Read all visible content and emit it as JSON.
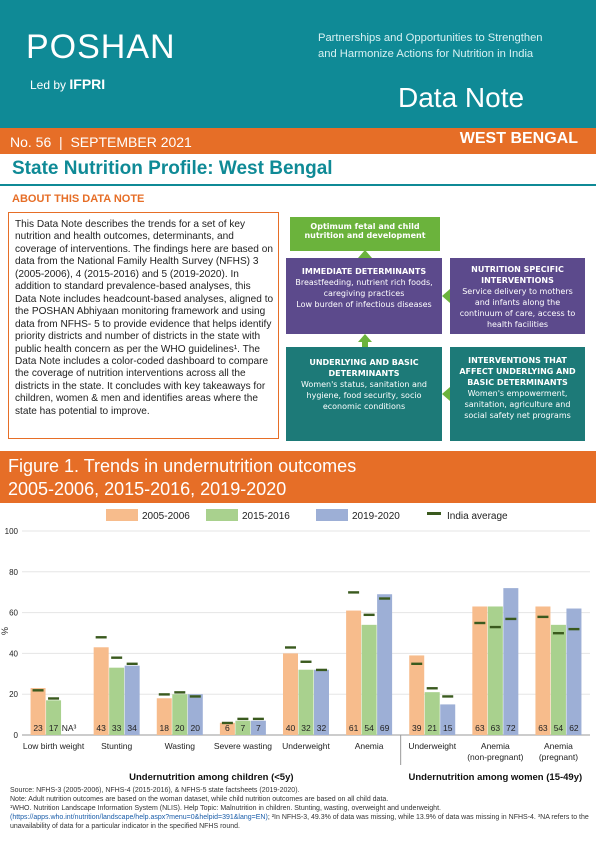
{
  "header": {
    "logo_text": "POSHAN",
    "led_by_prefix": "Led by",
    "led_by_org": "IFPRI",
    "tagline_line1": "Partnerships and Opportunities to Strengthen",
    "tagline_line2": "and Harmonize Actions for Nutrition in India",
    "series_title": "Data Note"
  },
  "issue": {
    "number": "No. 56",
    "separator": "|",
    "date": "SEPTEMBER 2021",
    "state": "WEST BENGAL"
  },
  "title": "State Nutrition Profile: West Bengal",
  "about": {
    "heading": "ABOUT THIS DATA NOTE",
    "body": "This Data Note describes the trends for a set of key nutrition and health outcomes, determinants, and coverage of interventions. The findings here are based on data from the National Family Health Survey (NFHS) 3 (2005-2006), 4 (2015-2016) and 5 (2019-2020). In addition to standard prevalence-based analyses, this Data Note includes headcount-based analyses, aligned to the POSHAN Abhiyaan monitoring framework and using data from NFHS- 5 to provide evidence that helps identify priority districts and number of districts in the state with public health concern as per the WHO guidelines¹. The Data Note includes a color-coded dashboard to compare the coverage of nutrition interventions across all the districts in the state. It concludes with key takeaways for children, women & men and identifies areas where the state has potential to improve."
  },
  "framework": {
    "outcome": "Optimum fetal and child nutrition and development",
    "immediate_title": "IMMEDIATE DETERMINANTS",
    "immediate_body": "Breastfeeding, nutrient rich foods, caregiving practices\nLow burden of infectious diseases",
    "specific_title": "NUTRITION SPECIFIC INTERVENTIONS",
    "specific_body": "Service delivery to mothers and infants along the continuum of care, access to health facilities",
    "underlying_title": "UNDERLYING AND BASIC DETERMINANTS",
    "underlying_body": "Women's status, sanitation and hygiene, food security, socio economic conditions",
    "sensitive_title": "INTERVENTIONS THAT AFFECT UNDERLYING AND BASIC DETERMINANTS",
    "sensitive_body": "Women's empowerment, sanitation, agriculture and social safety net programs",
    "colors": {
      "green": "#6bb33c",
      "purple": "#5c4a8c",
      "teal": "#1d7a78"
    }
  },
  "figure": {
    "title_line1": "Figure 1. Trends in undernutrition outcomes",
    "title_line2": "2005-2006, 2015-2016, 2019-2020"
  },
  "chart_data": {
    "type": "bar",
    "ylabel": "%",
    "ylim": [
      0,
      100
    ],
    "yticks": [
      0,
      20,
      40,
      60,
      80,
      100
    ],
    "categories": [
      "Low birth weight",
      "Stunting",
      "Wasting",
      "Severe wasting",
      "Underweight",
      "Anemia",
      "Underweight",
      "Anemia (non-pregnant)",
      "Anemia (pregnant)"
    ],
    "category_lines": [
      [
        "Low birth weight"
      ],
      [
        "Stunting"
      ],
      [
        "Wasting"
      ],
      [
        "Severe wasting"
      ],
      [
        "Underweight"
      ],
      [
        "Anemia"
      ],
      [
        "Underweight"
      ],
      [
        "Anemia",
        "(non-pregnant)"
      ],
      [
        "Anemia",
        "(pregnant)"
      ]
    ],
    "series": [
      {
        "name": "2005-2006",
        "color": "#f7bc8c",
        "values": [
          23,
          43,
          18,
          6,
          40,
          61,
          39,
          63,
          63
        ],
        "labels": [
          "23",
          "43",
          "18",
          "6",
          "40",
          "61",
          "39",
          "63",
          "63"
        ]
      },
      {
        "name": "2015-2016",
        "color": "#a9d18e",
        "values": [
          17,
          33,
          20,
          7,
          32,
          54,
          21,
          63,
          54
        ],
        "labels": [
          "17",
          "33",
          "20",
          "7",
          "32",
          "54",
          "21",
          "63",
          "54"
        ]
      },
      {
        "name": "2019-2020",
        "color": "#9dafd6",
        "values": [
          null,
          34,
          20,
          7,
          32,
          69,
          15,
          72,
          62
        ],
        "labels": [
          "NA³",
          "34",
          "20",
          "7",
          "32",
          "69",
          "15",
          "72",
          "62"
        ]
      }
    ],
    "india_average": {
      "name": "India average",
      "color": "#3a5a1e",
      "values": [
        [
          22,
          18,
          null
        ],
        [
          48,
          38,
          35
        ],
        [
          20,
          21,
          19
        ],
        [
          6,
          8,
          8
        ],
        [
          43,
          36,
          32
        ],
        [
          70,
          59,
          67
        ],
        [
          35,
          23,
          19
        ],
        [
          55,
          53,
          57
        ],
        [
          58,
          50,
          52
        ]
      ]
    },
    "groups": [
      {
        "label": "Undernutrition among children (<5y)",
        "from": 0,
        "to": 5
      },
      {
        "label": "Undernutrition among women (15-49y)",
        "from": 6,
        "to": 8
      }
    ]
  },
  "footnote": {
    "line1": "Source: NFHS-3 (2005-2006), NFHS-4 (2015-2016), & NFHS-5 state factsheets (2019-2020).",
    "line2": "Note: Adult nutrition outcomes are based on the woman dataset, while child nutrition outcomes are based on all child data.",
    "line3": "¹WHO. Nutrition Landscape Information System (NLIS). Help Topic: Malnutrition in children. Stunting, wasting, overweight and underweight.",
    "link": "(https://apps.who.int/nutrition/landscape/help.aspx?menu=0&helpid=391&lang=EN)",
    "line4": "; ²In NFHS-3, 49.3% of data was missing, while 13.9% of data was missing in NFHS-4. ³NA refers to the unavailability of data for a particular indicator in the specified NFHS round."
  }
}
